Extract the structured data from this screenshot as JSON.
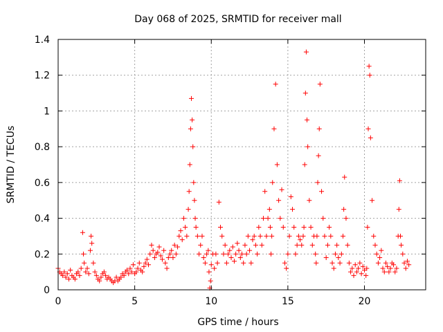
{
  "chart_data": {
    "type": "scatter",
    "title": "Day 068 of 2025, SRMTID for receiver mall",
    "xlabel": "GPS time / hours",
    "ylabel": "SRMTID / TECUs",
    "xlim": [
      0,
      24
    ],
    "ylim": [
      0,
      1.4
    ],
    "grid": true,
    "marker": "+",
    "series_color": "#ff0000",
    "xticks": [
      0,
      5,
      10,
      15,
      20
    ],
    "xtick_labels": [
      "0",
      "5",
      "10",
      "15",
      "20"
    ],
    "yticks": [
      0,
      0.2,
      0.4,
      0.6,
      0.8,
      1.0,
      1.2,
      1.4
    ],
    "ytick_labels": [
      "0",
      "0.2",
      "0.4",
      "0.6",
      "0.8",
      "1",
      "1.2",
      "1.4"
    ],
    "series": [
      {
        "name": "SRMTID",
        "x": [
          0.0,
          0.1,
          0.2,
          0.3,
          0.4,
          0.5,
          0.6,
          0.7,
          0.8,
          0.9,
          1.0,
          1.1,
          1.2,
          1.3,
          1.4,
          1.5,
          1.6,
          1.65,
          1.7,
          1.8,
          1.9,
          2.0,
          2.1,
          2.15,
          2.2,
          2.3,
          2.4,
          2.5,
          2.6,
          2.7,
          2.8,
          2.9,
          3.0,
          3.1,
          3.2,
          3.3,
          3.4,
          3.5,
          3.6,
          3.7,
          3.8,
          3.9,
          4.0,
          4.1,
          4.2,
          4.3,
          4.4,
          4.5,
          4.6,
          4.7,
          4.8,
          4.9,
          5.0,
          5.1,
          5.2,
          5.3,
          5.4,
          5.5,
          5.6,
          5.7,
          5.8,
          5.9,
          6.0,
          6.1,
          6.2,
          6.3,
          6.4,
          6.5,
          6.6,
          6.7,
          6.8,
          6.9,
          7.0,
          7.1,
          7.2,
          7.3,
          7.4,
          7.5,
          7.6,
          7.7,
          7.8,
          7.9,
          8.0,
          8.1,
          8.2,
          8.3,
          8.4,
          8.5,
          8.55,
          8.6,
          8.65,
          8.7,
          8.75,
          8.8,
          8.85,
          8.9,
          8.95,
          9.0,
          9.1,
          9.2,
          9.3,
          9.4,
          9.5,
          9.6,
          9.7,
          9.8,
          9.85,
          9.9,
          9.95,
          10.0,
          10.1,
          10.2,
          10.3,
          10.4,
          10.5,
          10.6,
          10.7,
          10.8,
          10.9,
          11.0,
          11.1,
          11.2,
          11.3,
          11.4,
          11.5,
          11.6,
          11.7,
          11.8,
          11.9,
          12.0,
          12.1,
          12.2,
          12.3,
          12.4,
          12.5,
          12.6,
          12.7,
          12.8,
          12.9,
          13.0,
          13.1,
          13.2,
          13.3,
          13.4,
          13.5,
          13.6,
          13.7,
          13.8,
          13.85,
          13.9,
          13.95,
          14.0,
          14.1,
          14.2,
          14.3,
          14.4,
          14.5,
          14.6,
          14.7,
          14.8,
          14.9,
          15.0,
          15.1,
          15.2,
          15.3,
          15.4,
          15.5,
          15.6,
          15.7,
          15.8,
          15.9,
          16.0,
          16.05,
          16.1,
          16.15,
          16.2,
          16.25,
          16.3,
          16.4,
          16.5,
          16.6,
          16.7,
          16.8,
          16.85,
          16.9,
          16.95,
          17.0,
          17.05,
          17.1,
          17.2,
          17.3,
          17.4,
          17.5,
          17.6,
          17.7,
          17.8,
          17.9,
          18.0,
          18.1,
          18.2,
          18.3,
          18.4,
          18.5,
          18.6,
          18.65,
          18.7,
          18.8,
          18.9,
          19.0,
          19.1,
          19.2,
          19.3,
          19.4,
          19.5,
          19.6,
          19.7,
          19.8,
          19.9,
          20.0,
          20.1,
          20.15,
          20.2,
          20.25,
          20.3,
          20.35,
          20.4,
          20.5,
          20.6,
          20.7,
          20.8,
          20.9,
          21.0,
          21.1,
          21.2,
          21.3,
          21.4,
          21.5,
          21.6,
          21.7,
          21.8,
          21.9,
          22.0,
          22.1,
          22.2,
          22.25,
          22.3,
          22.35,
          22.4,
          22.5,
          22.6,
          22.7,
          22.8,
          22.9
        ],
        "y": [
          0.12,
          0.1,
          0.09,
          0.08,
          0.1,
          0.07,
          0.09,
          0.06,
          0.11,
          0.08,
          0.07,
          0.06,
          0.09,
          0.1,
          0.08,
          0.12,
          0.32,
          0.2,
          0.15,
          0.1,
          0.12,
          0.09,
          0.22,
          0.3,
          0.26,
          0.15,
          0.1,
          0.08,
          0.06,
          0.05,
          0.07,
          0.09,
          0.1,
          0.08,
          0.06,
          0.07,
          0.06,
          0.05,
          0.04,
          0.05,
          0.07,
          0.05,
          0.06,
          0.07,
          0.09,
          0.08,
          0.1,
          0.11,
          0.09,
          0.12,
          0.1,
          0.14,
          0.09,
          0.1,
          0.12,
          0.15,
          0.11,
          0.1,
          0.13,
          0.15,
          0.17,
          0.14,
          0.2,
          0.25,
          0.22,
          0.18,
          0.2,
          0.21,
          0.24,
          0.19,
          0.17,
          0.22,
          0.15,
          0.12,
          0.18,
          0.2,
          0.22,
          0.18,
          0.25,
          0.2,
          0.24,
          0.3,
          0.33,
          0.28,
          0.4,
          0.35,
          0.3,
          0.45,
          0.55,
          0.7,
          0.9,
          1.07,
          0.95,
          0.8,
          0.6,
          0.5,
          0.4,
          0.35,
          0.3,
          0.2,
          0.25,
          0.3,
          0.18,
          0.15,
          0.2,
          0.22,
          0.1,
          0.01,
          0.05,
          0.14,
          0.2,
          0.12,
          0.2,
          0.15,
          0.49,
          0.35,
          0.3,
          0.2,
          0.25,
          0.15,
          0.2,
          0.22,
          0.18,
          0.24,
          0.16,
          0.2,
          0.26,
          0.22,
          0.18,
          0.2,
          0.15,
          0.25,
          0.2,
          0.3,
          0.22,
          0.15,
          0.28,
          0.3,
          0.25,
          0.2,
          0.35,
          0.3,
          0.25,
          0.4,
          0.55,
          0.3,
          0.4,
          0.45,
          0.35,
          0.2,
          0.3,
          0.6,
          0.9,
          1.15,
          0.7,
          0.5,
          0.4,
          0.56,
          0.35,
          0.15,
          0.12,
          0.2,
          0.3,
          0.52,
          0.45,
          0.35,
          0.2,
          0.25,
          0.3,
          0.28,
          0.25,
          0.3,
          0.35,
          0.7,
          1.1,
          1.33,
          0.95,
          0.8,
          0.5,
          0.35,
          0.25,
          0.3,
          0.2,
          0.15,
          0.3,
          0.6,
          0.75,
          0.9,
          1.15,
          0.55,
          0.4,
          0.3,
          0.18,
          0.25,
          0.35,
          0.3,
          0.15,
          0.12,
          0.2,
          0.25,
          0.18,
          0.15,
          0.2,
          0.3,
          0.45,
          0.63,
          0.4,
          0.25,
          0.15,
          0.1,
          0.12,
          0.08,
          0.14,
          0.1,
          0.12,
          0.15,
          0.09,
          0.13,
          0.11,
          0.08,
          0.12,
          0.35,
          0.9,
          1.25,
          1.2,
          0.85,
          0.5,
          0.3,
          0.25,
          0.2,
          0.15,
          0.18,
          0.22,
          0.12,
          0.1,
          0.15,
          0.13,
          0.1,
          0.12,
          0.15,
          0.14,
          0.1,
          0.12,
          0.3,
          0.45,
          0.61,
          0.3,
          0.25,
          0.2,
          0.15,
          0.12,
          0.16,
          0.14
        ]
      }
    ]
  }
}
